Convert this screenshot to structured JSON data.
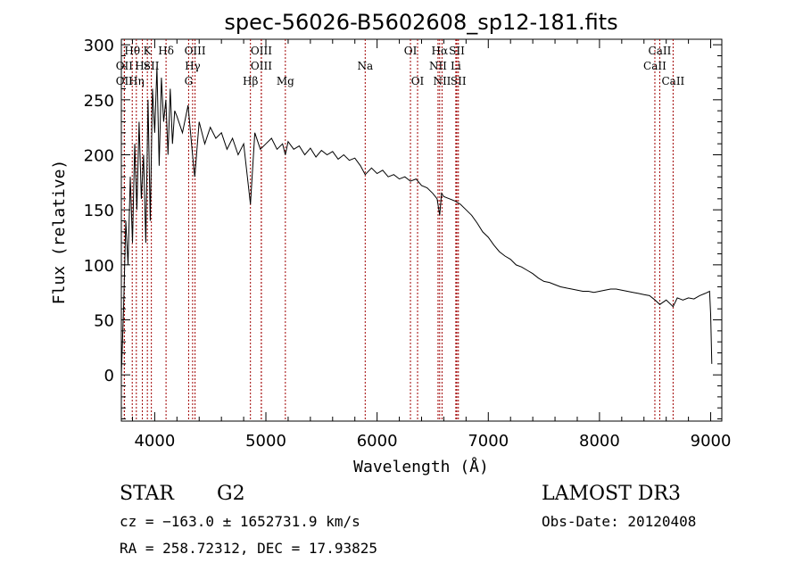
{
  "chart_data": {
    "type": "line",
    "title": "spec-56026-B5602608_sp12-181.fits",
    "xlabel": "Wavelength (Å)",
    "ylabel": "Flux (relative)",
    "xlim": [
      3700,
      9100
    ],
    "ylim": [
      -42,
      305
    ],
    "x_ticks": [
      4000,
      5000,
      6000,
      7000,
      8000,
      9000
    ],
    "y_ticks": [
      0,
      50,
      100,
      150,
      200,
      250,
      300
    ],
    "grid": false,
    "series": [
      {
        "name": "flux",
        "x": [
          3700,
          3720,
          3740,
          3760,
          3780,
          3800,
          3820,
          3840,
          3860,
          3880,
          3900,
          3920,
          3940,
          3960,
          3980,
          4000,
          4020,
          4040,
          4060,
          4080,
          4100,
          4120,
          4140,
          4160,
          4180,
          4200,
          4250,
          4300,
          4340,
          4360,
          4400,
          4450,
          4500,
          4550,
          4600,
          4650,
          4700,
          4750,
          4800,
          4861,
          4900,
          4950,
          5000,
          5050,
          5100,
          5150,
          5175,
          5200,
          5250,
          5300,
          5350,
          5400,
          5450,
          5500,
          5550,
          5600,
          5650,
          5700,
          5750,
          5800,
          5850,
          5893,
          5950,
          6000,
          6050,
          6100,
          6150,
          6200,
          6250,
          6300,
          6350,
          6400,
          6450,
          6500,
          6540,
          6563,
          6580,
          6600,
          6650,
          6700,
          6750,
          6800,
          6850,
          6900,
          6950,
          7000,
          7050,
          7100,
          7150,
          7200,
          7250,
          7300,
          7350,
          7400,
          7450,
          7500,
          7550,
          7600,
          7650,
          7700,
          7750,
          7800,
          7850,
          7900,
          7950,
          8000,
          8050,
          8100,
          8150,
          8200,
          8250,
          8300,
          8350,
          8400,
          8450,
          8500,
          8542,
          8600,
          8662,
          8700,
          8750,
          8800,
          8850,
          8900,
          8950,
          8990,
          9000,
          9010
        ],
        "y": [
          0,
          60,
          140,
          100,
          180,
          120,
          210,
          150,
          230,
          160,
          200,
          120,
          250,
          140,
          260,
          220,
          280,
          190,
          270,
          230,
          250,
          200,
          260,
          210,
          240,
          235,
          220,
          245,
          200,
          180,
          230,
          210,
          225,
          215,
          220,
          205,
          215,
          200,
          210,
          155,
          220,
          205,
          210,
          215,
          205,
          210,
          200,
          212,
          205,
          208,
          200,
          206,
          198,
          204,
          200,
          203,
          196,
          200,
          195,
          197,
          190,
          182,
          188,
          183,
          186,
          180,
          182,
          178,
          180,
          176,
          178,
          172,
          170,
          165,
          160,
          145,
          165,
          162,
          160,
          158,
          155,
          150,
          145,
          138,
          130,
          125,
          118,
          112,
          108,
          105,
          100,
          98,
          95,
          92,
          88,
          85,
          84,
          82,
          80,
          79,
          78,
          77,
          76,
          76,
          75,
          76,
          77,
          78,
          78,
          77,
          76,
          75,
          74,
          73,
          72,
          68,
          64,
          68,
          62,
          70,
          68,
          70,
          69,
          72,
          74,
          76,
          55,
          10
        ]
      }
    ],
    "lines": [
      {
        "label": "Hθ",
        "x": 3798,
        "row": 1,
        "color": "#a00000"
      },
      {
        "label": "OII",
        "x": 3727,
        "row": 2,
        "color": "#a00000"
      },
      {
        "label": "OII",
        "x": 3727,
        "row": 3,
        "color": "#a00000"
      },
      {
        "label": "Hη",
        "x": 3835,
        "row": 3,
        "color": "#a00000"
      },
      {
        "label": "Hε",
        "x": 3889,
        "row": 2,
        "color": "#a00000"
      },
      {
        "label": "K",
        "x": 3934,
        "row": 1,
        "color": "#a00000"
      },
      {
        "label": "SII",
        "x": 3970,
        "row": 2,
        "color": "#a00000"
      },
      {
        "label": "Hδ",
        "x": 4102,
        "row": 1,
        "color": "#a00000"
      },
      {
        "label": "OIII",
        "x": 4363,
        "row": 1,
        "color": "#a00000"
      },
      {
        "label": "Hγ",
        "x": 4341,
        "row": 2,
        "color": "#a00000"
      },
      {
        "label": "G",
        "x": 4305,
        "row": 3,
        "color": "#a00000"
      },
      {
        "label": "Hβ",
        "x": 4861,
        "row": 3,
        "color": "#a00000"
      },
      {
        "label": "OIII",
        "x": 4959,
        "row": 1,
        "color": "#a00000"
      },
      {
        "label": "OIII",
        "x": 4959,
        "row": 2,
        "color": "#a00000"
      },
      {
        "label": "Mg",
        "x": 5175,
        "row": 3,
        "color": "#a00000"
      },
      {
        "label": "Na",
        "x": 5893,
        "row": 2,
        "color": "#a00000"
      },
      {
        "label": "OI",
        "x": 6300,
        "row": 1,
        "color": "#a00000"
      },
      {
        "label": "OI",
        "x": 6364,
        "row": 3,
        "color": "#a00000"
      },
      {
        "label": "Hα",
        "x": 6563,
        "row": 1,
        "color": "#a00000"
      },
      {
        "label": "NII",
        "x": 6548,
        "row": 2,
        "color": "#a00000"
      },
      {
        "label": "NII",
        "x": 6584,
        "row": 3,
        "color": "#a00000"
      },
      {
        "label": "SII",
        "x": 6717,
        "row": 1,
        "color": "#a00000"
      },
      {
        "label": "Li",
        "x": 6708,
        "row": 2,
        "color": "#a00000"
      },
      {
        "label": "SII",
        "x": 6731,
        "row": 3,
        "color": "#a00000"
      },
      {
        "label": "CaII",
        "x": 8542,
        "row": 1,
        "color": "#a00000"
      },
      {
        "label": "CaII",
        "x": 8498,
        "row": 2,
        "color": "#a00000"
      },
      {
        "label": "CaII",
        "x": 8662,
        "row": 3,
        "color": "#a00000"
      }
    ]
  },
  "info": {
    "object_class": "STAR",
    "subclass": "G2",
    "survey": "LAMOST DR3",
    "cz_line": "cz = −163.0 ± 1652731.9 km/s",
    "obs_date_line": "Obs-Date: 20120408",
    "coords_line": "RA = 258.72312, DEC =  17.93825"
  }
}
